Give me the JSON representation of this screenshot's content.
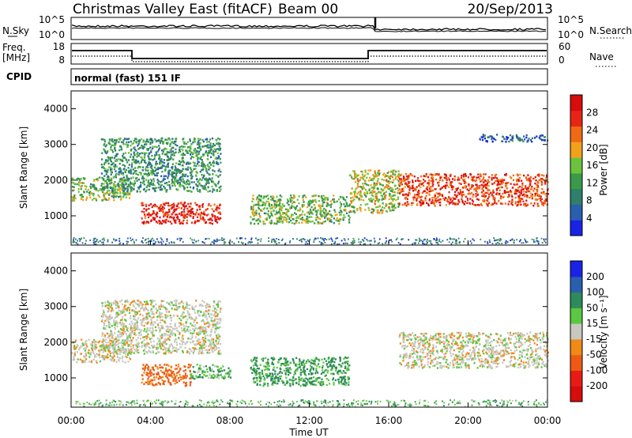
{
  "header": {
    "title": "Christmas Valley East (fitACF)",
    "beam": "Beam 00",
    "date": "20/Sep/2013"
  },
  "top_panels": {
    "nsky_label": "N.Sky",
    "nsky_ticks": [
      "10^5",
      "10^0"
    ],
    "nsearch_label": "N.Search",
    "nsearch_ticks": [
      "10^5",
      "10^0"
    ],
    "freq_label_1": "Freq.",
    "freq_label_2": "[MHz]",
    "freq_ticks": [
      "18",
      "8"
    ],
    "nave_label": "Nave",
    "nave_ticks": [
      "60",
      "0"
    ],
    "cpid_label": "CPID",
    "cpid_text": "normal (fast) 151 IF"
  },
  "colors": {
    "power_scale": [
      "#1a22e6",
      "#2a5fb0",
      "#2f7f6a",
      "#3a9a4a",
      "#6cc23c",
      "#f2a11a",
      "#f06a14",
      "#e82414",
      "#d80c0c"
    ],
    "velocity_scale": [
      "#1a22e6",
      "#2a5fb0",
      "#2f8a5a",
      "#5ac840",
      "#c8c8c0",
      "#f08a14",
      "#ee5a14",
      "#e81c14",
      "#d80c0c"
    ]
  },
  "chart_data": [
    {
      "type": "heatmap",
      "title": "Power",
      "xlabel": "",
      "ylabel": "Slant Range [km]",
      "xlim": [
        "00:00",
        "00:00"
      ],
      "ylim": [
        180,
        4500
      ],
      "xticks": [
        "00:00",
        "04:00",
        "08:00",
        "12:00",
        "16:00",
        "20:00",
        "00:00"
      ],
      "yticks": [
        "1000",
        "2000",
        "3000",
        "4000"
      ],
      "colorbar": {
        "label": "Power [dB]",
        "ticks": [
          "4",
          "8",
          "12",
          "16",
          "20",
          "24",
          "28"
        ],
        "range": [
          0,
          30
        ]
      },
      "features": [
        {
          "hours": [
            0.0,
            3.0
          ],
          "range_km": [
            1450,
            2100
          ],
          "value_db": 14
        },
        {
          "hours": [
            1.5,
            7.5
          ],
          "range_km": [
            1700,
            3200
          ],
          "value_db": 10
        },
        {
          "hours": [
            3.5,
            7.5
          ],
          "range_km": [
            800,
            1400
          ],
          "value_db": 26
        },
        {
          "hours": [
            9.0,
            14.0
          ],
          "range_km": [
            800,
            1600
          ],
          "value_db": 14
        },
        {
          "hours": [
            14.0,
            16.5
          ],
          "range_km": [
            1100,
            2300
          ],
          "value_db": 16
        },
        {
          "hours": [
            16.5,
            24.0
          ],
          "range_km": [
            1300,
            2200
          ],
          "value_db": 24
        },
        {
          "hours": [
            20.5,
            24.0
          ],
          "range_km": [
            3100,
            3300
          ],
          "value_db": 6
        }
      ]
    },
    {
      "type": "heatmap",
      "title": "Velocity",
      "xlabel": "Time UT",
      "ylabel": "Slant Range [km]",
      "xlim": [
        "00:00",
        "00:00"
      ],
      "ylim": [
        180,
        4500
      ],
      "xticks": [
        "00:00",
        "04:00",
        "08:00",
        "12:00",
        "16:00",
        "20:00",
        "00:00"
      ],
      "yticks": [
        "1000",
        "2000",
        "3000",
        "4000"
      ],
      "colorbar": {
        "label": "Velocity [m s⁻¹]",
        "ticks": [
          "200",
          "100",
          "50",
          "15",
          "-15",
          "-50",
          "-100",
          "-200"
        ],
        "range": [
          -250,
          250
        ]
      },
      "features": [
        {
          "hours": [
            0.0,
            3.0
          ],
          "range_km": [
            1450,
            2100
          ],
          "value_ms": 0
        },
        {
          "hours": [
            1.5,
            7.5
          ],
          "range_km": [
            1700,
            3200
          ],
          "value_ms": 0
        },
        {
          "hours": [
            3.5,
            6.0
          ],
          "range_km": [
            800,
            1400
          ],
          "value_ms": -60
        },
        {
          "hours": [
            6.0,
            8.0
          ],
          "range_km": [
            1000,
            1400
          ],
          "value_ms": 30
        },
        {
          "hours": [
            9.0,
            14.0
          ],
          "range_km": [
            800,
            1600
          ],
          "value_ms": 40
        },
        {
          "hours": [
            16.5,
            24.0
          ],
          "range_km": [
            1300,
            2300
          ],
          "value_ms": 0
        }
      ]
    }
  ]
}
